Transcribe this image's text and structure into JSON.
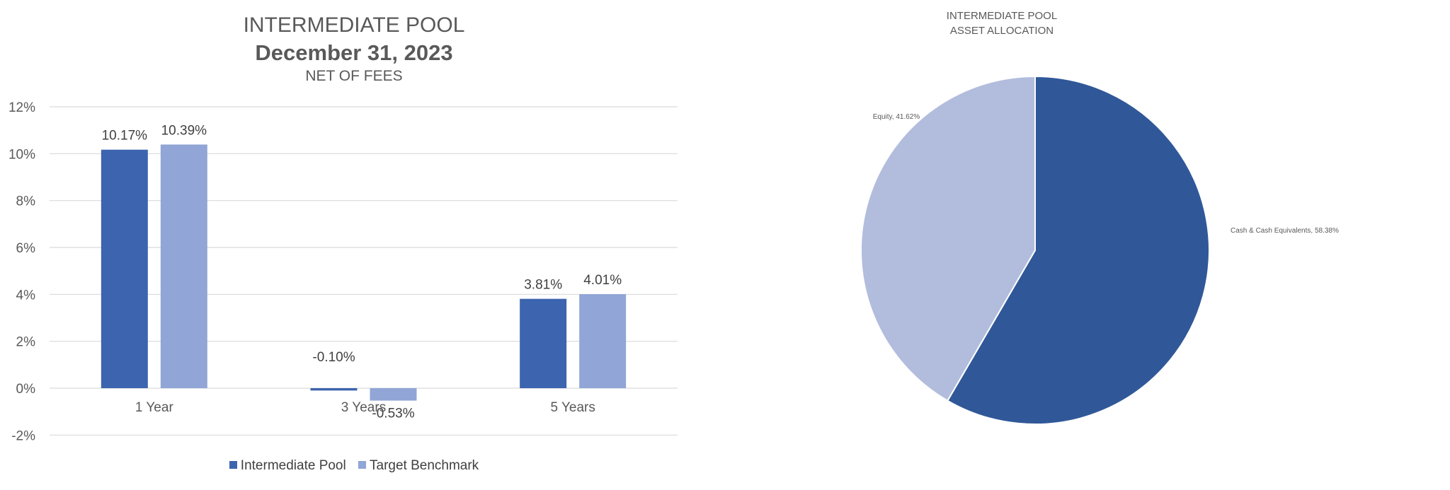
{
  "chart_data": [
    {
      "type": "bar",
      "title": "INTERMEDIATE POOL",
      "subtitle": "December 31, 2023",
      "subtitle2": "NET OF FEES",
      "categories": [
        "1 Year",
        "3 Years",
        "5 Years"
      ],
      "series": [
        {
          "name": "Intermediate Pool",
          "values": [
            10.17,
            -0.1,
            3.81
          ],
          "labels": [
            "10.17%",
            "-0.10%",
            "3.81%"
          ],
          "color": "#3D64AE"
        },
        {
          "name": "Target Benchmark",
          "values": [
            10.39,
            -0.53,
            4.01
          ],
          "labels": [
            "10.39%",
            "-0.53%",
            "4.01%"
          ],
          "color": "#91A5D6"
        }
      ],
      "yticks": [
        -2,
        0,
        2,
        4,
        6,
        8,
        10,
        12
      ],
      "ytick_labels": [
        "-2%",
        "0%",
        "2%",
        "4%",
        "6%",
        "8%",
        "10%",
        "12%"
      ],
      "ylim": [
        -2,
        12
      ],
      "grid": true,
      "legend": "bottom"
    },
    {
      "type": "pie",
      "title": "INTERMEDIATE POOL",
      "subtitle": "ASSET ALLOCATION",
      "slices": [
        {
          "label": "Cash & Cash Equivalents, 58.38%",
          "value": 58.38,
          "color": "#305899"
        },
        {
          "label": "Equity, 41.62%",
          "value": 41.62,
          "color": "#B2BDDD"
        }
      ],
      "start": "top",
      "direction": "clockwise"
    }
  ]
}
